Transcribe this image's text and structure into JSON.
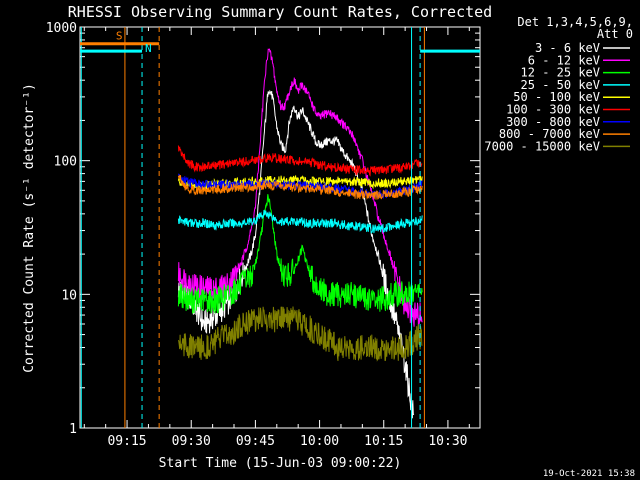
{
  "chart_data": {
    "type": "line",
    "title": "RHESSI Observing Summary Count Rates, Corrected",
    "xlabel": "Start Time (15-Jun-03 09:00:22)",
    "ylabel": "Corrected Count Rate (s⁻¹ detector⁻¹)",
    "ylog": true,
    "ylim": [
      1,
      1000
    ],
    "xlim_minutes": [
      0,
      43
    ],
    "x_ticks": [
      {
        "t": 15,
        "label": "09:15"
      },
      {
        "t": 30,
        "label": "09:30"
      },
      {
        "t": 45,
        "label": "09:45"
      },
      {
        "t": 60,
        "label": "10:00"
      },
      {
        "t": 75,
        "label": "10:15"
      },
      {
        "t": 90,
        "label": "10:30"
      }
    ],
    "x_unit": "minutes after 09:00",
    "y_ticks": [
      1,
      10,
      100,
      1000
    ],
    "legend_header": [
      "Det 1,3,4,5,6,9,",
      "Att 0"
    ],
    "legend_position": "top-right, outside",
    "series": [
      {
        "name": "3 - 6 keV",
        "color": "#ffffff",
        "points": [
          [
            27,
            11
          ],
          [
            30,
            9
          ],
          [
            33,
            6
          ],
          [
            36,
            7
          ],
          [
            39,
            9
          ],
          [
            42,
            14
          ],
          [
            44,
            20
          ],
          [
            45,
            28
          ],
          [
            46,
            60
          ],
          [
            47,
            150
          ],
          [
            48,
            350
          ],
          [
            49,
            300
          ],
          [
            50,
            180
          ],
          [
            51,
            130
          ],
          [
            52,
            120
          ],
          [
            53,
            200
          ],
          [
            54,
            260
          ],
          [
            55,
            210
          ],
          [
            56,
            240
          ],
          [
            57,
            200
          ],
          [
            58,
            170
          ],
          [
            59,
            140
          ],
          [
            60,
            130
          ],
          [
            62,
            140
          ],
          [
            64,
            140
          ],
          [
            66,
            110
          ],
          [
            68,
            90
          ],
          [
            70,
            60
          ],
          [
            72,
            30
          ],
          [
            74,
            18
          ],
          [
            76,
            10
          ],
          [
            78,
            6
          ],
          [
            80,
            3
          ],
          [
            82,
            1.2
          ]
        ]
      },
      {
        "name": "6 - 12 keV",
        "color": "#ff00ff",
        "points": [
          [
            27,
            14
          ],
          [
            30,
            12
          ],
          [
            33,
            11
          ],
          [
            36,
            11
          ],
          [
            39,
            12
          ],
          [
            42,
            18
          ],
          [
            44,
            30
          ],
          [
            45,
            45
          ],
          [
            46,
            120
          ],
          [
            47,
            350
          ],
          [
            48,
            700
          ],
          [
            49,
            550
          ],
          [
            50,
            330
          ],
          [
            51,
            250
          ],
          [
            52,
            260
          ],
          [
            53,
            340
          ],
          [
            54,
            400
          ],
          [
            55,
            330
          ],
          [
            56,
            370
          ],
          [
            57,
            330
          ],
          [
            58,
            280
          ],
          [
            59,
            230
          ],
          [
            60,
            210
          ],
          [
            62,
            230
          ],
          [
            64,
            210
          ],
          [
            66,
            180
          ],
          [
            68,
            150
          ],
          [
            70,
            100
          ],
          [
            72,
            60
          ],
          [
            74,
            35
          ],
          [
            76,
            22
          ],
          [
            78,
            13
          ],
          [
            80,
            8
          ],
          [
            82,
            7
          ],
          [
            84,
            7
          ]
        ]
      },
      {
        "name": "12 - 25 keV",
        "color": "#00ff00",
        "points": [
          [
            27,
            10
          ],
          [
            30,
            9
          ],
          [
            33,
            9
          ],
          [
            36,
            9
          ],
          [
            39,
            10
          ],
          [
            42,
            12
          ],
          [
            44,
            14
          ],
          [
            45,
            17
          ],
          [
            46,
            24
          ],
          [
            47,
            38
          ],
          [
            48,
            55
          ],
          [
            49,
            35
          ],
          [
            50,
            20
          ],
          [
            51,
            15
          ],
          [
            52,
            14
          ],
          [
            53,
            14
          ],
          [
            54,
            15
          ],
          [
            55,
            18
          ],
          [
            56,
            22
          ],
          [
            57,
            17
          ],
          [
            58,
            14
          ],
          [
            59,
            12
          ],
          [
            60,
            11
          ],
          [
            62,
            10
          ],
          [
            64,
            10
          ],
          [
            66,
            10
          ],
          [
            68,
            10
          ],
          [
            70,
            9.5
          ],
          [
            72,
            9
          ],
          [
            74,
            9
          ],
          [
            76,
            9.5
          ],
          [
            78,
            10
          ],
          [
            80,
            10
          ],
          [
            82,
            10
          ],
          [
            84,
            11
          ]
        ]
      },
      {
        "name": "25 - 50 keV",
        "color": "#00ffff",
        "points": [
          [
            27,
            36
          ],
          [
            30,
            34
          ],
          [
            33,
            34
          ],
          [
            36,
            33
          ],
          [
            39,
            34
          ],
          [
            42,
            34
          ],
          [
            44,
            35
          ],
          [
            45,
            36
          ],
          [
            46,
            38
          ],
          [
            47,
            40
          ],
          [
            48,
            40
          ],
          [
            49,
            38
          ],
          [
            50,
            36
          ],
          [
            51,
            35
          ],
          [
            52,
            35
          ],
          [
            53,
            35
          ],
          [
            54,
            35
          ],
          [
            55,
            35
          ],
          [
            56,
            35
          ],
          [
            57,
            34
          ],
          [
            58,
            34
          ],
          [
            59,
            34
          ],
          [
            60,
            34
          ],
          [
            62,
            34
          ],
          [
            64,
            34
          ],
          [
            66,
            33
          ],
          [
            68,
            32
          ],
          [
            70,
            32
          ],
          [
            72,
            31
          ],
          [
            74,
            31
          ],
          [
            76,
            32
          ],
          [
            78,
            33
          ],
          [
            80,
            34
          ],
          [
            82,
            35
          ],
          [
            84,
            36
          ]
        ]
      },
      {
        "name": "50 - 100 keV",
        "color": "#ffff00",
        "points": [
          [
            27,
            70
          ],
          [
            30,
            66
          ],
          [
            33,
            66
          ],
          [
            36,
            67
          ],
          [
            39,
            68
          ],
          [
            42,
            69
          ],
          [
            44,
            70
          ],
          [
            45,
            70
          ],
          [
            46,
            71
          ],
          [
            47,
            72
          ],
          [
            48,
            72
          ],
          [
            49,
            72
          ],
          [
            50,
            72
          ],
          [
            51,
            72
          ],
          [
            52,
            72
          ],
          [
            53,
            72
          ],
          [
            54,
            72
          ],
          [
            55,
            71
          ],
          [
            56,
            71
          ],
          [
            57,
            70
          ],
          [
            58,
            70
          ],
          [
            59,
            70
          ],
          [
            60,
            70
          ],
          [
            62,
            70
          ],
          [
            64,
            70
          ],
          [
            66,
            70
          ],
          [
            68,
            70
          ],
          [
            70,
            69
          ],
          [
            72,
            68
          ],
          [
            74,
            68
          ],
          [
            76,
            68
          ],
          [
            78,
            69
          ],
          [
            80,
            70
          ],
          [
            82,
            71
          ],
          [
            84,
            73
          ]
        ]
      },
      {
        "name": "100 - 300 keV",
        "color": "#ff0000",
        "points": [
          [
            27,
            125
          ],
          [
            29,
            98
          ],
          [
            31,
            90
          ],
          [
            33,
            90
          ],
          [
            36,
            92
          ],
          [
            39,
            95
          ],
          [
            42,
            98
          ],
          [
            44,
            100
          ],
          [
            45,
            101
          ],
          [
            46,
            102
          ],
          [
            47,
            104
          ],
          [
            48,
            105
          ],
          [
            49,
            105
          ],
          [
            50,
            104
          ],
          [
            51,
            103
          ],
          [
            52,
            102
          ],
          [
            53,
            101
          ],
          [
            54,
            100
          ],
          [
            55,
            99
          ],
          [
            56,
            98
          ],
          [
            57,
            97
          ],
          [
            58,
            96
          ],
          [
            59,
            95
          ],
          [
            60,
            93
          ],
          [
            62,
            91
          ],
          [
            64,
            89
          ],
          [
            66,
            87
          ],
          [
            68,
            85
          ],
          [
            70,
            84
          ],
          [
            72,
            84
          ],
          [
            74,
            85
          ],
          [
            76,
            86
          ],
          [
            78,
            88
          ],
          [
            80,
            90
          ],
          [
            82,
            93
          ],
          [
            84,
            98
          ]
        ]
      },
      {
        "name": "300 - 800 keV",
        "color": "#0000ff",
        "points": [
          [
            27,
            75
          ],
          [
            30,
            68
          ],
          [
            33,
            66
          ],
          [
            36,
            66
          ],
          [
            39,
            66
          ],
          [
            42,
            66
          ],
          [
            44,
            66
          ],
          [
            45,
            66
          ],
          [
            46,
            66
          ],
          [
            48,
            67
          ],
          [
            50,
            67
          ],
          [
            52,
            66
          ],
          [
            54,
            66
          ],
          [
            56,
            65
          ],
          [
            58,
            65
          ],
          [
            60,
            64
          ],
          [
            62,
            63
          ],
          [
            64,
            62
          ],
          [
            66,
            60
          ],
          [
            68,
            58
          ],
          [
            70,
            57
          ],
          [
            72,
            56
          ],
          [
            74,
            56
          ],
          [
            76,
            57
          ],
          [
            78,
            58
          ],
          [
            80,
            60
          ],
          [
            82,
            62
          ],
          [
            84,
            66
          ]
        ]
      },
      {
        "name": "800 - 7000 keV",
        "color": "#ff7f00",
        "points": [
          [
            27,
            78
          ],
          [
            29,
            62
          ],
          [
            31,
            60
          ],
          [
            33,
            60
          ],
          [
            36,
            61
          ],
          [
            39,
            62
          ],
          [
            42,
            63
          ],
          [
            44,
            64
          ],
          [
            45,
            64
          ],
          [
            46,
            65
          ],
          [
            48,
            65
          ],
          [
            50,
            65
          ],
          [
            52,
            64
          ],
          [
            54,
            63
          ],
          [
            56,
            62
          ],
          [
            58,
            62
          ],
          [
            60,
            61
          ],
          [
            62,
            60
          ],
          [
            64,
            58
          ],
          [
            66,
            57
          ],
          [
            68,
            56
          ],
          [
            70,
            55
          ],
          [
            72,
            55
          ],
          [
            74,
            55
          ],
          [
            76,
            56
          ],
          [
            78,
            57
          ],
          [
            80,
            58
          ],
          [
            82,
            60
          ],
          [
            84,
            62
          ]
        ]
      },
      {
        "name": "7000 - 15000 keV",
        "color": "#808000",
        "points": [
          [
            27,
            4.5
          ],
          [
            30,
            4
          ],
          [
            33,
            4
          ],
          [
            36,
            4.5
          ],
          [
            39,
            5
          ],
          [
            42,
            6
          ],
          [
            44,
            6.5
          ],
          [
            45,
            6.5
          ],
          [
            46,
            6.5
          ],
          [
            48,
            6.5
          ],
          [
            50,
            6.5
          ],
          [
            52,
            6.5
          ],
          [
            54,
            6.5
          ],
          [
            56,
            6
          ],
          [
            58,
            5.5
          ],
          [
            60,
            5
          ],
          [
            62,
            4.5
          ],
          [
            64,
            4
          ],
          [
            66,
            4
          ],
          [
            68,
            4
          ],
          [
            70,
            4
          ],
          [
            72,
            4
          ],
          [
            74,
            4
          ],
          [
            76,
            4
          ],
          [
            78,
            4
          ],
          [
            80,
            4
          ],
          [
            82,
            4.5
          ],
          [
            84,
            5
          ]
        ]
      }
    ],
    "annotations": {
      "saa": {
        "label": "S",
        "color": "#ff7f00",
        "t_start": -6,
        "t_end": 22.5,
        "y_level": 750
      },
      "night": {
        "label": "N",
        "color": "#00ffff",
        "t_start": -6,
        "t_end": 18.5,
        "y_level": 660
      },
      "night2": {
        "color": "#00ffff",
        "t_start": 83.5,
        "t_end": 100,
        "y_level": 660
      },
      "cyan_dashed_times": [
        18.5,
        83.5
      ],
      "orange_dashed_times": [
        22.5
      ],
      "orange_solid_times": [
        14.5,
        84.5
      ],
      "cyan_solid_times": [
        81.5
      ]
    },
    "footer_date": "19-Oct-2021 15:38"
  }
}
